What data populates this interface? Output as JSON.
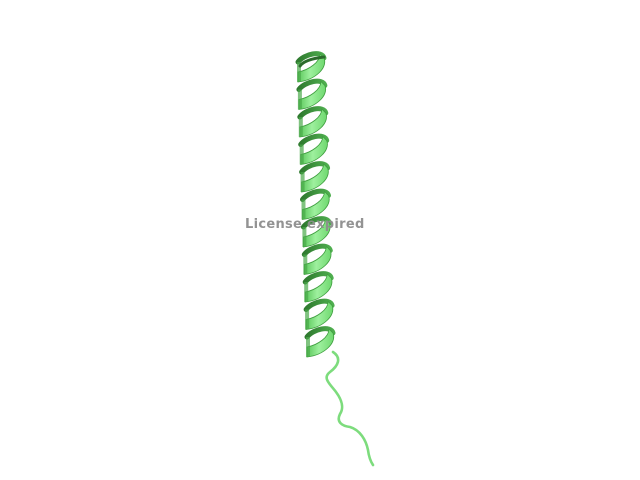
{
  "viewer": {
    "watermark_text": "License expired",
    "structure": "alpha-helix-ribbon",
    "colors": {
      "background": "#ffffff",
      "ribbon_light": "#8fe88f",
      "ribbon_mid": "#67d667",
      "ribbon_dark": "#3d9a3d",
      "watermark": "#8e8e8e"
    }
  }
}
